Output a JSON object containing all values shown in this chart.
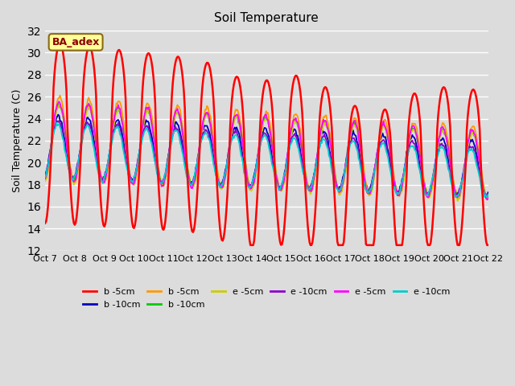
{
  "title": "Soil Temperature",
  "ylabel": "Soil Temperature (C)",
  "ylim": [
    12,
    32
  ],
  "yticks": [
    12,
    14,
    16,
    18,
    20,
    22,
    24,
    26,
    28,
    30,
    32
  ],
  "xtick_labels": [
    "Oct 7",
    "Oct 8",
    "Oct 9",
    "Oct 10",
    "Oct 11",
    "Oct 12",
    "Oct 13",
    "Oct 14",
    "Oct 15",
    "Oct 16",
    "Oct 17",
    "Oct 18",
    "Oct 19",
    "Oct 20",
    "Oct 21",
    "Oct 22"
  ],
  "annotation_text": "BA_adex",
  "series_colors": [
    "#ff0000",
    "#0000bb",
    "#ff9900",
    "#00cc00",
    "#cccc00",
    "#8800cc",
    "#ff00ff",
    "#00cccc"
  ],
  "series_labels": [
    "b -5cm",
    "b -10cm",
    "b -5cm",
    "b -10cm",
    "e -5cm",
    "e -10cm",
    "e -5cm",
    "e -10cm"
  ],
  "n_points": 480,
  "n_days": 15
}
